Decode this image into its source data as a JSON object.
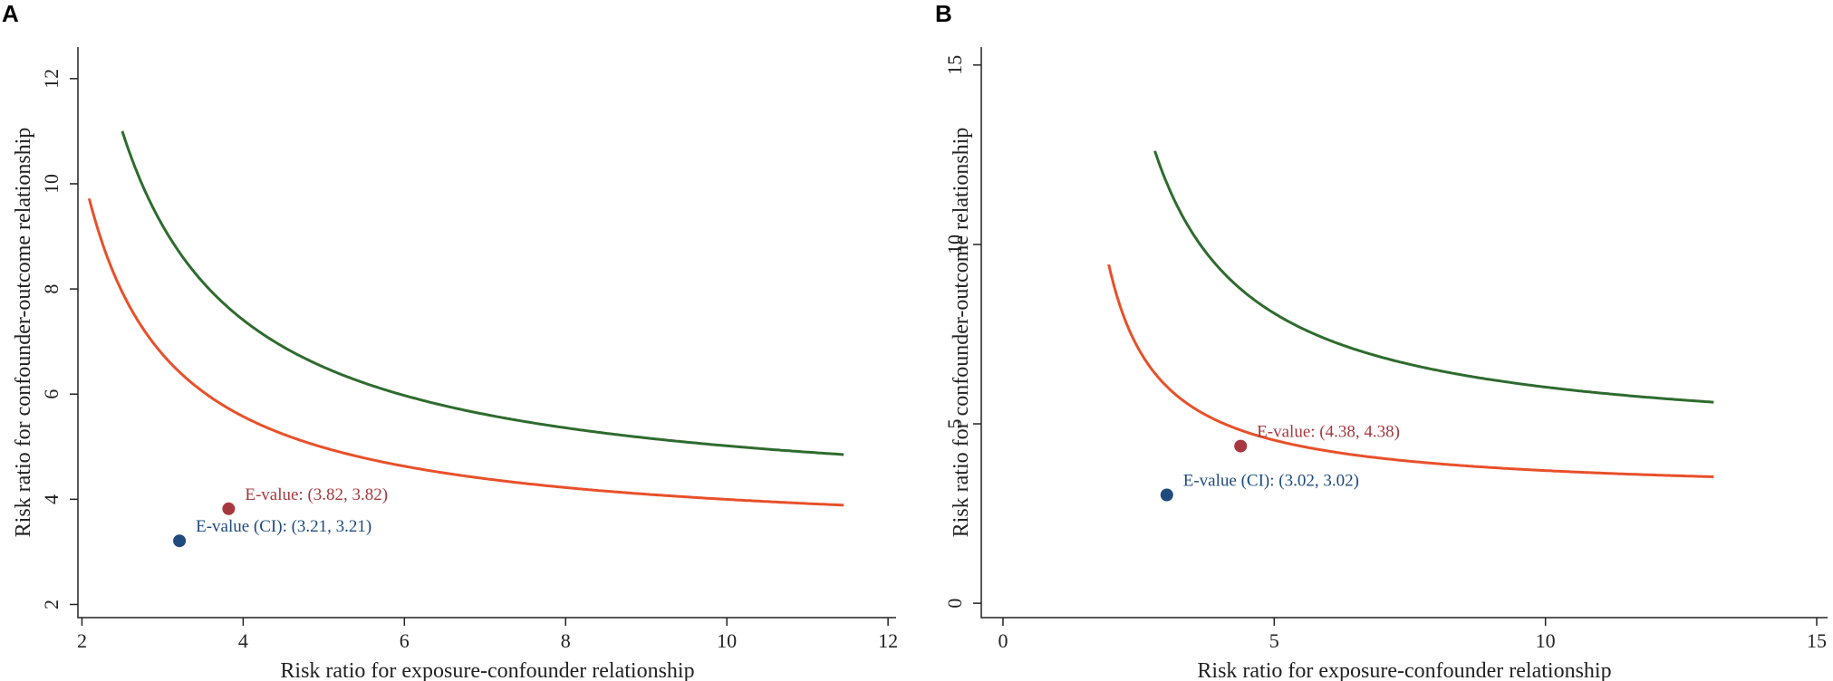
{
  "chart_data": [
    {
      "panel": "A",
      "type": "line",
      "xlabel": "Risk ratio for exposure-confounder relationship",
      "ylabel": "Risk ratio for confounder-outcome relationship",
      "xlim": [
        1.95,
        12.1
      ],
      "ylim": [
        1.75,
        12.6
      ],
      "xticks": [
        2,
        4,
        6,
        8,
        10,
        12
      ],
      "yticks": [
        2,
        4,
        6,
        8,
        10,
        12
      ],
      "xtick_labels": [
        "2",
        "4",
        "6",
        "8",
        "10",
        "12"
      ],
      "ytick_labels": [
        "2",
        "4",
        "6",
        "8",
        "10",
        "12"
      ],
      "x_max": 11.45,
      "series": [
        {
          "name": "E-value curve",
          "color": "#2e6b2e",
          "rr": 3.82,
          "x_start": 2.5
        },
        {
          "name": "E-value (CI) curve",
          "color": "#e8502a",
          "rr": 3.21,
          "x_start": 2.09
        }
      ],
      "points": [
        {
          "label": "E-value: (3.82, 3.82)",
          "x": 3.82,
          "y": 3.82,
          "color": "#a8383f"
        },
        {
          "label": "E-value (CI): (3.21, 3.21)",
          "x": 3.21,
          "y": 3.21,
          "color": "#1e4a7e"
        }
      ]
    },
    {
      "panel": "B",
      "type": "line",
      "xlabel": "Risk ratio for exposure-confounder relationship",
      "ylabel": "Risk ratio for confounder-outcome relationship",
      "xlim": [
        -0.4,
        15.2
      ],
      "ylim": [
        -0.4,
        15.5
      ],
      "xticks": [
        0,
        5,
        10,
        15
      ],
      "yticks": [
        0,
        5,
        10,
        15
      ],
      "xtick_labels": [
        "0",
        "5",
        "10",
        "15"
      ],
      "ytick_labels": [
        "0",
        "5",
        "10",
        "15"
      ],
      "x_max": 13.1,
      "series": [
        {
          "name": "E-value curve",
          "color": "#2e6b2e",
          "rr": 4.38,
          "x_start": 2.8
        },
        {
          "name": "E-value (CI) curve",
          "color": "#e8502a",
          "rr": 3.02,
          "x_start": 1.95
        }
      ],
      "points": [
        {
          "label": "E-value: (4.38, 4.38)",
          "x": 4.38,
          "y": 4.38,
          "color": "#a8383f"
        },
        {
          "label": "E-value (CI): (3.02, 3.02)",
          "x": 3.02,
          "y": 3.02,
          "color": "#1e4a7e"
        }
      ]
    }
  ]
}
